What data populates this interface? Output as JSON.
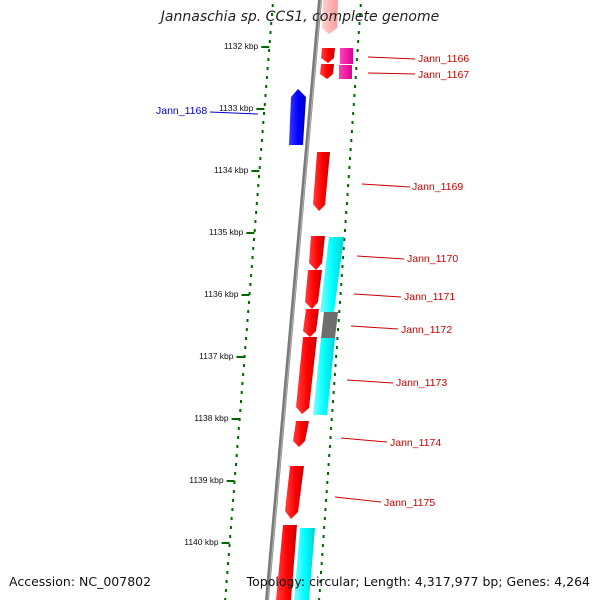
{
  "title": "Jannaschia sp. CCS1, complete genome",
  "footer": {
    "accession": "Accession: NC_007802",
    "summary": "Topology: circular; Length: 4,317,977 bp; Genes: 4,264"
  },
  "ticks": [
    "1132 kbp",
    "1133 kbp",
    "1134 kbp",
    "1135 kbp",
    "1136 kbp",
    "1137 kbp",
    "1138 kbp",
    "1139 kbp",
    "1140 kbp"
  ],
  "genes": [
    {
      "label": "Jann_1166",
      "color": "#cc0000"
    },
    {
      "label": "Jann_1167",
      "color": "#cc0000"
    },
    {
      "label": "Jann_1168",
      "color": "#0000cc"
    },
    {
      "label": "Jann_1169",
      "color": "#cc0000"
    },
    {
      "label": "Jann_1170",
      "color": "#cc0000"
    },
    {
      "label": "Jann_1171",
      "color": "#cc0000"
    },
    {
      "label": "Jann_1172",
      "color": "#cc0000"
    },
    {
      "label": "Jann_1173",
      "color": "#cc0000"
    },
    {
      "label": "Jann_1174",
      "color": "#cc0000"
    },
    {
      "label": "Jann_1175",
      "color": "#cc0000"
    }
  ],
  "colors": {
    "forward_cds": "#ff0000",
    "reverse_cds": "#0000ff",
    "rna_feature": "#00ffff",
    "pseudo_feature": "#ff00aa",
    "gap_feature": "#666666",
    "backbone": "#888888",
    "tick": "#006600"
  }
}
